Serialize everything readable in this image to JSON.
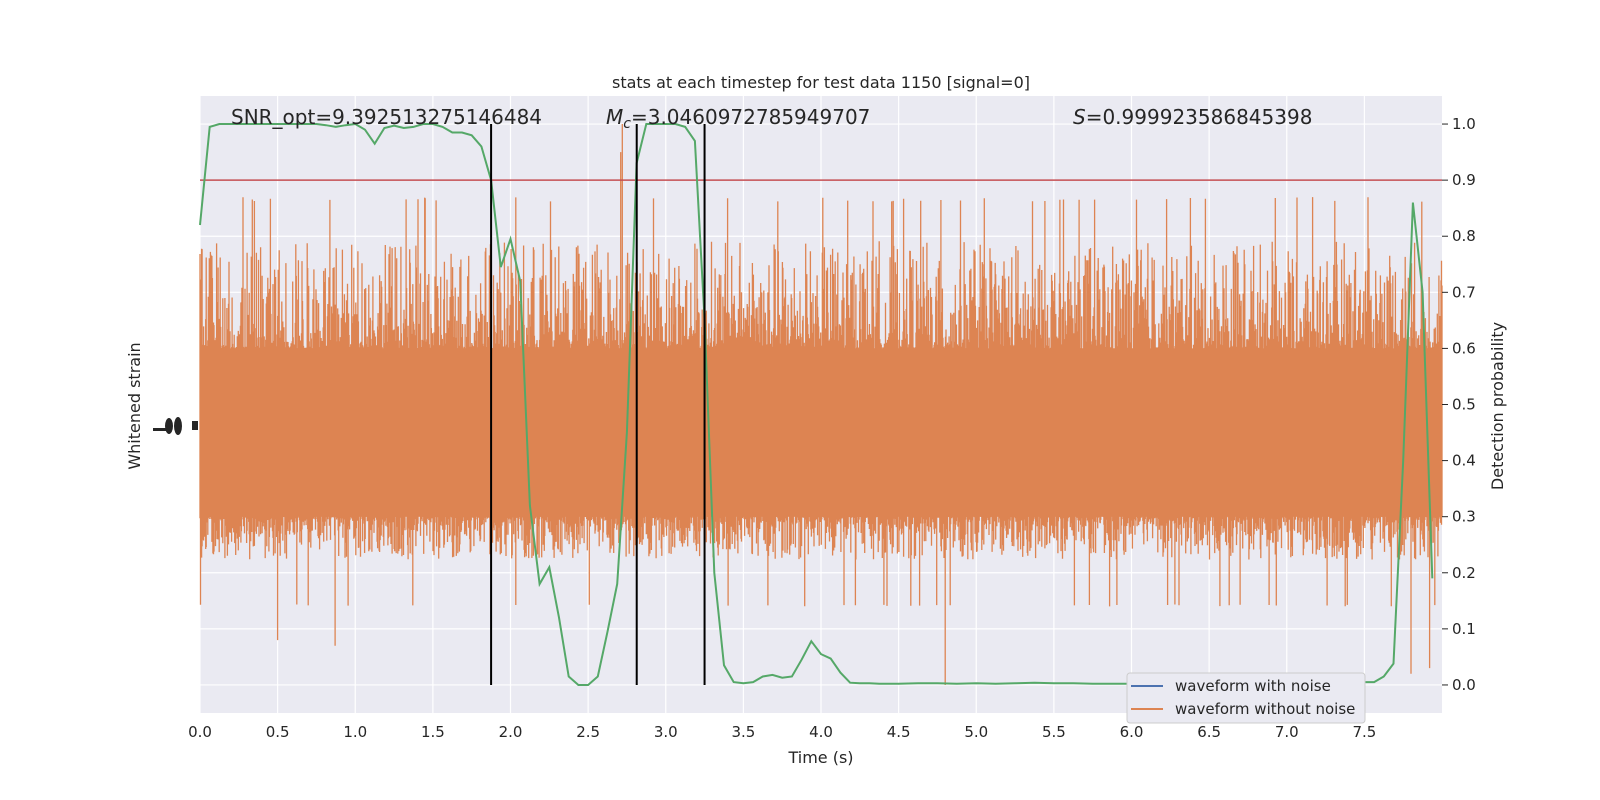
{
  "chart_data": {
    "type": "line",
    "title": "stats at each timestep for test data 1150 [signal=0]",
    "xlabel": "Time (s)",
    "ylabel_left": "Whitened strain",
    "ylabel_right": "Detection probability",
    "xlim": [
      0.0,
      8.0
    ],
    "ylim_right": [
      -0.05,
      1.05
    ],
    "x_ticks": [
      "0.0",
      "0.5",
      "1.0",
      "1.5",
      "2.0",
      "2.5",
      "3.0",
      "3.5",
      "4.0",
      "4.5",
      "5.0",
      "5.5",
      "6.0",
      "6.5",
      "7.0",
      "7.5"
    ],
    "y_ticks_right": [
      "0.0",
      "0.1",
      "0.2",
      "0.3",
      "0.4",
      "0.5",
      "0.6",
      "0.7",
      "0.8",
      "0.9",
      "1.0"
    ],
    "grid": true,
    "annotations": {
      "snr": "SNR_opt=9.392513275146484",
      "mc_symbol": "M",
      "mc_sub": "c",
      "mc_value": "=3.0460972785949707",
      "s_symbol": "S",
      "s_value": "=0.999923586845398"
    },
    "threshold": 0.9,
    "vertical_lines": [
      1.875,
      2.813,
      3.25
    ],
    "legend": {
      "placement": "lower-right",
      "entries": [
        "waveform with noise",
        "waveform without noise"
      ]
    },
    "series": [
      {
        "name": "waveform without noise",
        "color": "#dd8452",
        "typical_low": 0.22,
        "typical_high": 0.8,
        "band_low": 0.3,
        "band_high": 0.6,
        "spikes": [
          [
            2.72,
            1.0
          ],
          [
            2.71,
            0.95
          ],
          [
            4.8,
            0.0
          ],
          [
            7.8,
            0.02
          ],
          [
            0.5,
            0.08
          ],
          [
            0.87,
            0.07
          ],
          [
            7.92,
            0.03
          ]
        ]
      },
      {
        "name": "detection probability",
        "color": "#55a868",
        "x": [
          0.0,
          0.0625,
          0.125,
          0.1875,
          0.25,
          0.3125,
          0.375,
          0.4375,
          0.5,
          0.5625,
          0.625,
          0.6875,
          0.75,
          0.8125,
          0.875,
          0.9375,
          1.0,
          1.0625,
          1.125,
          1.1875,
          1.25,
          1.3125,
          1.375,
          1.4375,
          1.5,
          1.5625,
          1.625,
          1.6875,
          1.75,
          1.8125,
          1.875,
          1.9375,
          2.0,
          2.0625,
          2.125,
          2.1875,
          2.25,
          2.3125,
          2.375,
          2.4375,
          2.5,
          2.5625,
          2.625,
          2.6875,
          2.75,
          2.8125,
          2.875,
          2.9375,
          3.0,
          3.0625,
          3.125,
          3.1875,
          3.25,
          3.3125,
          3.375,
          3.4375,
          3.5,
          3.5625,
          3.625,
          3.6875,
          3.75,
          3.8125,
          3.875,
          3.9375,
          4.0,
          4.0625,
          4.125,
          4.1875,
          4.25,
          4.3125,
          4.375,
          4.5,
          4.625,
          4.75,
          4.875,
          5.0,
          5.125,
          5.25,
          5.375,
          5.5,
          5.625,
          5.75,
          5.875,
          6.0,
          6.125,
          6.25,
          6.375,
          6.5,
          6.625,
          6.75,
          6.875,
          7.0,
          7.125,
          7.25,
          7.375,
          7.5,
          7.5625,
          7.625,
          7.6875,
          7.75,
          7.8125,
          7.875,
          7.9375
        ],
        "y": [
          0.82,
          0.995,
          1.0,
          1.0,
          1.0,
          1.0,
          1.0,
          1.0,
          1.0,
          1.0,
          1.0,
          1.0,
          1.0,
          0.998,
          0.995,
          0.998,
          1.0,
          0.99,
          0.965,
          0.993,
          0.997,
          0.993,
          0.995,
          1.0,
          1.0,
          0.995,
          0.985,
          0.985,
          0.98,
          0.96,
          0.9,
          0.745,
          0.795,
          0.72,
          0.32,
          0.18,
          0.21,
          0.12,
          0.015,
          0.0,
          0.0,
          0.015,
          0.095,
          0.18,
          0.45,
          0.93,
          1.0,
          1.0,
          1.0,
          1.0,
          0.995,
          0.97,
          0.65,
          0.2,
          0.035,
          0.005,
          0.003,
          0.005,
          0.015,
          0.018,
          0.013,
          0.015,
          0.045,
          0.078,
          0.055,
          0.047,
          0.022,
          0.004,
          0.003,
          0.003,
          0.002,
          0.002,
          0.003,
          0.003,
          0.002,
          0.003,
          0.002,
          0.003,
          0.004,
          0.003,
          0.003,
          0.002,
          0.002,
          0.002,
          0.003,
          0.003,
          0.002,
          0.002,
          0.003,
          0.002,
          0.003,
          0.002,
          0.002,
          0.003,
          0.004,
          0.005,
          0.005,
          0.015,
          0.038,
          0.4,
          0.86,
          0.7,
          0.19
        ]
      }
    ]
  }
}
